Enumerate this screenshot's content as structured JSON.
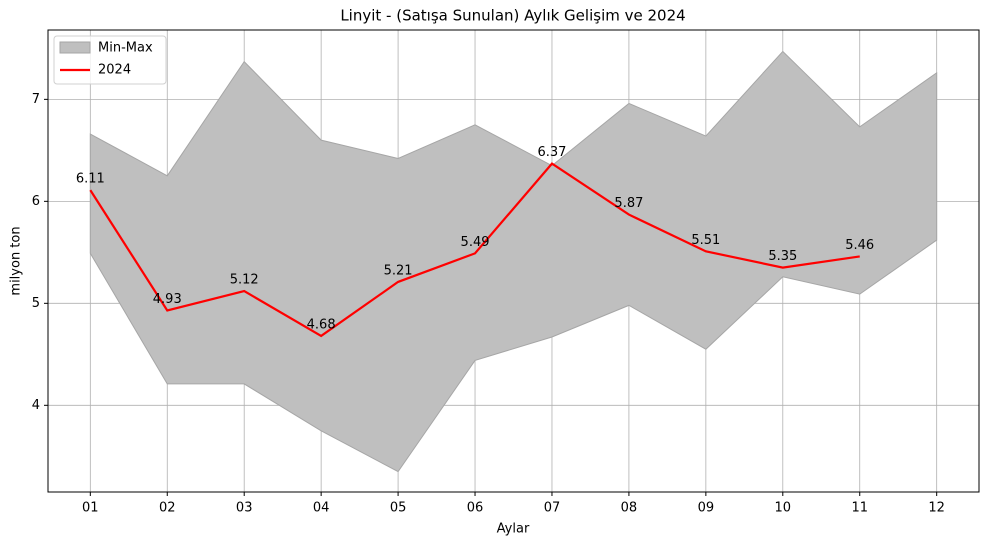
{
  "chart_data": {
    "type": "band-line",
    "title": "Linyit - (Satışa Sunulan) Aylık Gelişim ve 2024",
    "xlabel": "Aylar",
    "ylabel": "milyon ton",
    "categories": [
      "01",
      "02",
      "03",
      "04",
      "05",
      "06",
      "07",
      "08",
      "09",
      "10",
      "11",
      "12"
    ],
    "band": {
      "name": "Min-Max",
      "color": "#bfbfbf",
      "edge": "#a6a6a6",
      "max": [
        6.66,
        6.25,
        7.37,
        6.6,
        6.42,
        6.75,
        6.35,
        6.96,
        6.64,
        7.47,
        6.73,
        7.26
      ],
      "min": [
        5.49,
        4.21,
        4.21,
        3.75,
        3.35,
        4.44,
        4.67,
        4.98,
        4.55,
        5.26,
        5.09,
        5.62
      ]
    },
    "series": [
      {
        "name": "2024",
        "color": "#ff0000",
        "values": [
          6.11,
          4.93,
          5.12,
          4.68,
          5.21,
          5.49,
          6.37,
          5.87,
          5.51,
          5.35,
          5.46,
          null
        ]
      }
    ],
    "ylim": [
      3.15,
      7.68
    ],
    "yticks": [
      4,
      5,
      6,
      7
    ],
    "grid": true,
    "legend": "upper-left"
  }
}
